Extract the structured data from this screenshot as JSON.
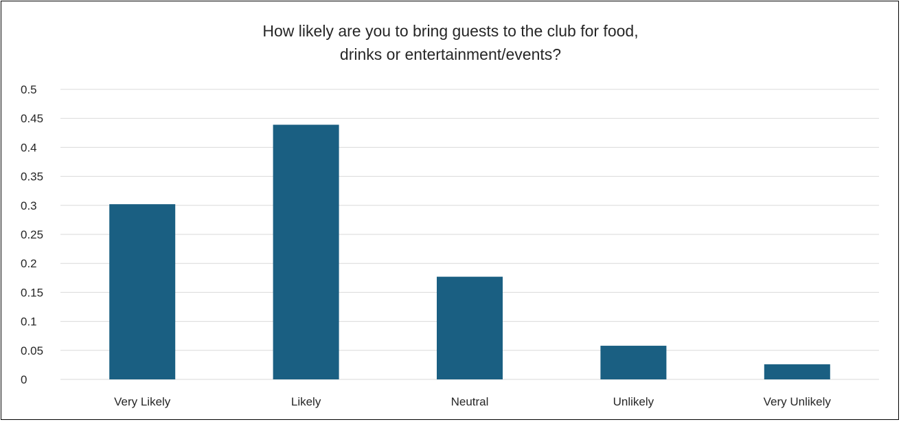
{
  "chart_data": {
    "type": "bar",
    "title": "How likely are you to bring guests to the club for food,\ndrinks or entertainment/events?",
    "categories": [
      "Very Likely",
      "Likely",
      "Neutral",
      "Unlikely",
      "Very Unlikely"
    ],
    "values": [
      0.302,
      0.439,
      0.177,
      0.058,
      0.026
    ],
    "y_ticks": [
      "0",
      "0.05",
      "0.1",
      "0.15",
      "0.2",
      "0.25",
      "0.3",
      "0.35",
      "0.4",
      "0.45",
      "0.5"
    ],
    "ylim": [
      0,
      0.5
    ],
    "grid": true,
    "legend": "none",
    "bar_color": "#1a5f82",
    "grid_color": "#d9d9d9",
    "axis_color": "#d9d9d9"
  }
}
